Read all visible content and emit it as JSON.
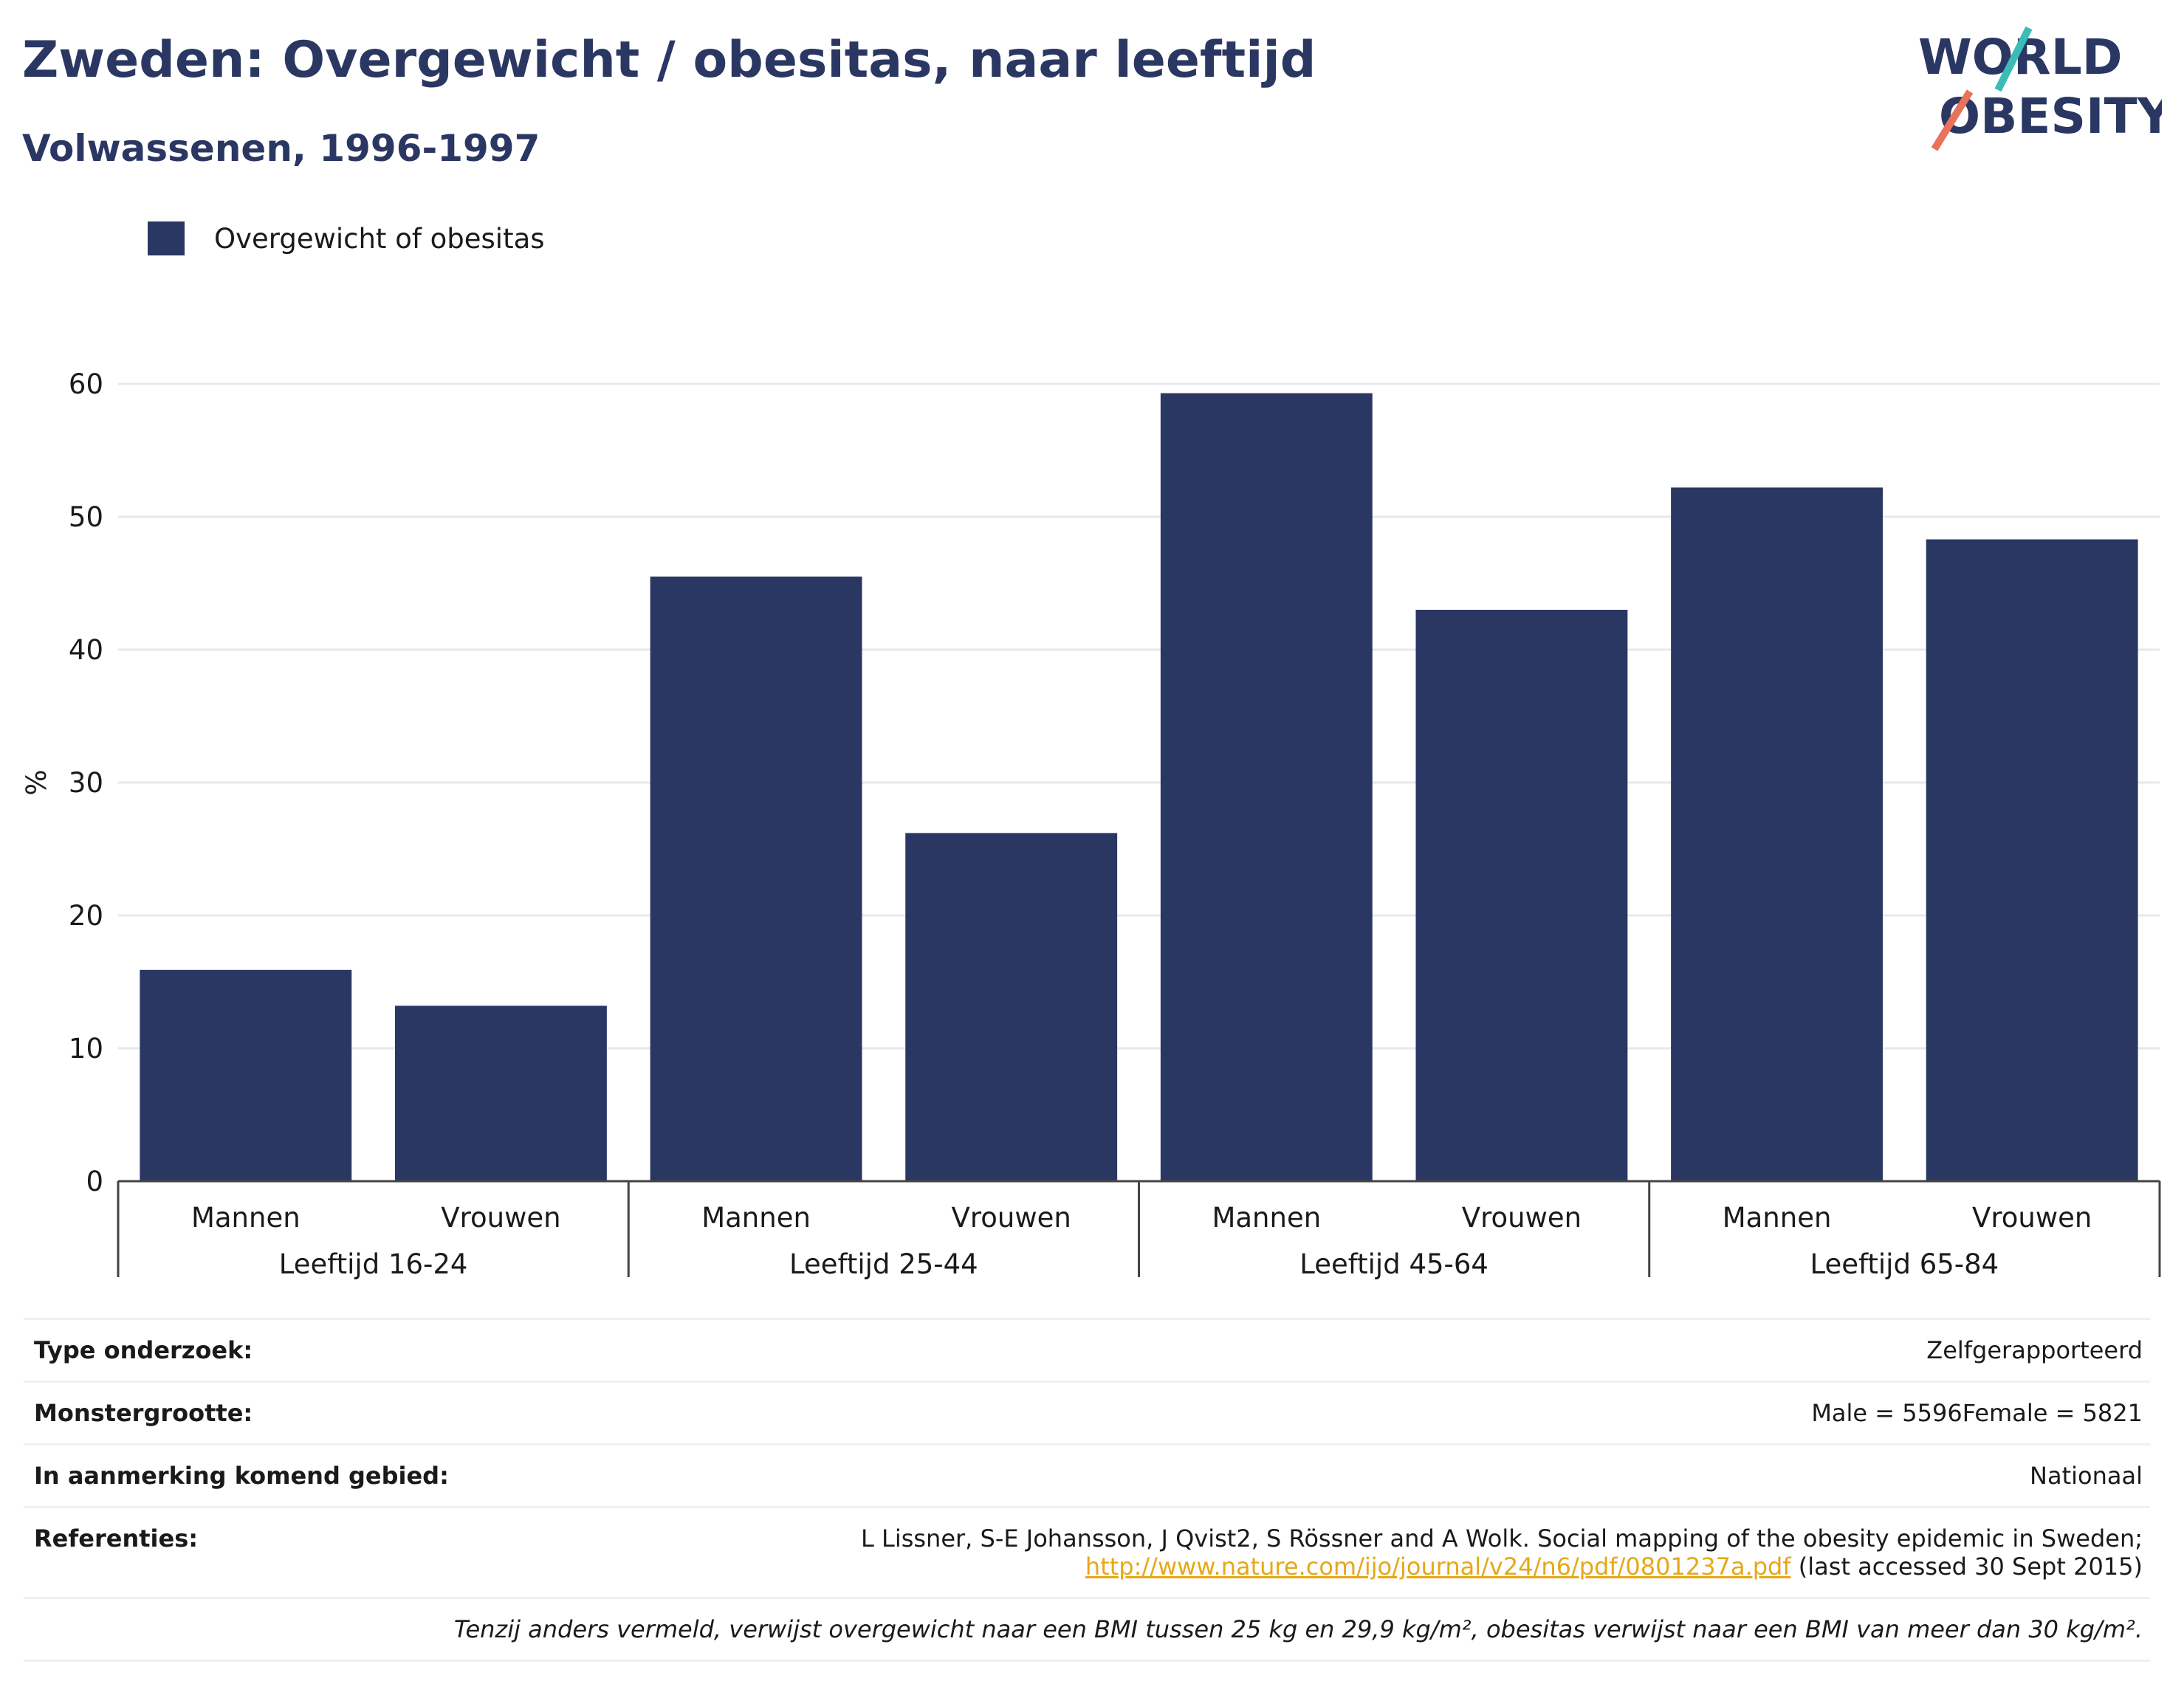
{
  "title": "Zweden: Overgewicht / obesitas, naar leeftijd",
  "subtitle": "Volwassenen, 1996-1997",
  "logo": {
    "line1": "WORLD",
    "line2": "OBESITY"
  },
  "colors": {
    "bar": "#2b3763",
    "title": "#2b3763",
    "link": "#e6a817",
    "logo_teal": "#3cbcb6",
    "logo_coral": "#e8735a"
  },
  "chart_data": {
    "type": "bar",
    "legend": "top-left",
    "grid": true,
    "ylabel": "%",
    "ylim": [
      0,
      60
    ],
    "yticks": [
      0,
      10,
      20,
      30,
      40,
      50,
      60
    ],
    "groups": [
      "Leeftijd 16-24",
      "Leeftijd 25-44",
      "Leeftijd 45-64",
      "Leeftijd 65-84"
    ],
    "categories": [
      "Mannen",
      "Vrouwen",
      "Mannen",
      "Vrouwen",
      "Mannen",
      "Vrouwen",
      "Mannen",
      "Vrouwen"
    ],
    "series": [
      {
        "name": "Overgewicht of obesitas",
        "values": [
          15.9,
          13.2,
          45.5,
          26.2,
          59.3,
          43.0,
          52.2,
          48.3
        ]
      }
    ]
  },
  "info": {
    "survey_type_label": "Type onderzoek:",
    "survey_type_value": "Zelfgerapporteerd",
    "sample_label": "Monstergrootte:",
    "sample_value": "Male = 5596Female = 5821",
    "area_label": "In aanmerking komend gebied:",
    "area_value": "Nationaal",
    "refs_label": "Referenties:",
    "refs_text": "L Lissner, S-E Johansson, J Qvist2, S Rössner and A Wolk. Social mapping of the obesity epidemic in Sweden;",
    "refs_link": "http://www.nature.com/ijo/journal/v24/n6/pdf/0801237a.pdf",
    "refs_accessed": "(last accessed 30 Sept 2015)",
    "footnote": "Tenzij anders vermeld, verwijst overgewicht naar een BMI tussen 25 kg en 29,9 kg/m², obesitas verwijst naar een BMI van meer dan 30 kg/m²."
  }
}
